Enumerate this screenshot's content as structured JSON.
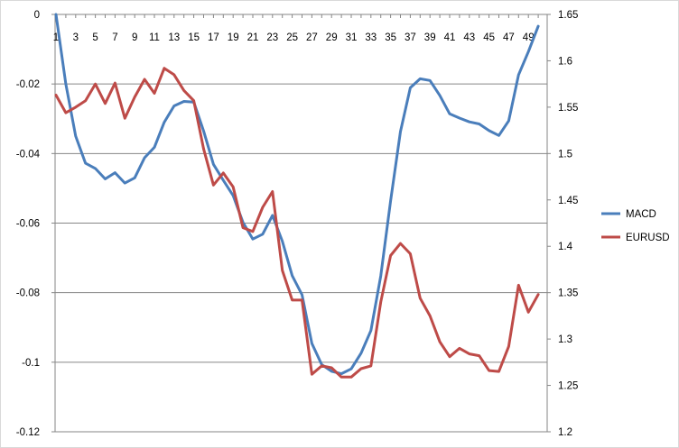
{
  "chart_data": {
    "type": "line",
    "title": "",
    "xlabel": "",
    "ylabel": "",
    "x": [
      1,
      2,
      3,
      4,
      5,
      6,
      7,
      8,
      9,
      10,
      11,
      12,
      13,
      14,
      15,
      16,
      17,
      18,
      19,
      20,
      21,
      22,
      23,
      24,
      25,
      26,
      27,
      28,
      29,
      30,
      31,
      32,
      33,
      34,
      35,
      36,
      37,
      38,
      39,
      40,
      41,
      42,
      43,
      44,
      45,
      46,
      47,
      48,
      49,
      50
    ],
    "x_tick_labels": [
      "1",
      "3",
      "5",
      "7",
      "9",
      "11",
      "13",
      "15",
      "17",
      "19",
      "21",
      "23",
      "25",
      "27",
      "29",
      "31",
      "33",
      "35",
      "37",
      "39",
      "41",
      "43",
      "45",
      "47",
      "49"
    ],
    "y_left_lim": [
      -0.12,
      0
    ],
    "y_left_ticks": [
      "0",
      "-0.02",
      "-0.04",
      "-0.06",
      "-0.08",
      "-0.1",
      "-0.12"
    ],
    "y_right_lim": [
      1.2,
      1.65
    ],
    "y_right_ticks": [
      "1.65",
      "1.6",
      "1.55",
      "1.5",
      "1.45",
      "1.4",
      "1.35",
      "1.3",
      "1.25",
      "1.2"
    ],
    "grid": "horizontal major gridlines",
    "legend_position": "right",
    "series": [
      {
        "name": "MACD",
        "axis": "left",
        "color": "#4a7ebb",
        "values": [
          0.0,
          -0.02,
          -0.035,
          -0.0428,
          -0.0443,
          -0.0473,
          -0.0455,
          -0.0485,
          -0.047,
          -0.0412,
          -0.0382,
          -0.031,
          -0.0263,
          -0.025,
          -0.0252,
          -0.0335,
          -0.0431,
          -0.0477,
          -0.0521,
          -0.0598,
          -0.0646,
          -0.0632,
          -0.0578,
          -0.0652,
          -0.0751,
          -0.0806,
          -0.0946,
          -0.1007,
          -0.1026,
          -0.1033,
          -0.1019,
          -0.0974,
          -0.0909,
          -0.0752,
          -0.0536,
          -0.0337,
          -0.0211,
          -0.0185,
          -0.019,
          -0.0233,
          -0.0286,
          -0.0298,
          -0.0309,
          -0.0315,
          -0.0334,
          -0.0348,
          -0.0306,
          -0.0174,
          -0.0107,
          -0.0034
        ]
      },
      {
        "name": "EURUSD",
        "axis": "right",
        "color": "#be4b48",
        "values": [
          1.563,
          1.544,
          1.55,
          1.557,
          1.575,
          1.554,
          1.576,
          1.538,
          1.561,
          1.58,
          1.565,
          1.592,
          1.585,
          1.568,
          1.557,
          1.505,
          1.466,
          1.479,
          1.464,
          1.42,
          1.416,
          1.442,
          1.459,
          1.374,
          1.342,
          1.342,
          1.262,
          1.271,
          1.269,
          1.259,
          1.259,
          1.268,
          1.271,
          1.34,
          1.39,
          1.403,
          1.392,
          1.344,
          1.325,
          1.297,
          1.281,
          1.29,
          1.284,
          1.282,
          1.266,
          1.265,
          1.292,
          1.358,
          1.329,
          1.348
        ]
      }
    ]
  }
}
